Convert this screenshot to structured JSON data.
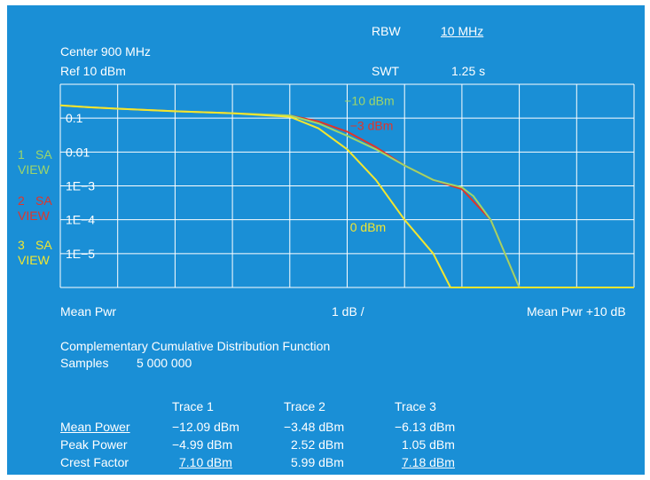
{
  "header": {
    "center": "Center 900 MHz",
    "ref": "Ref 10 dBm",
    "rbw_label": "RBW",
    "rbw_value": "10 MHz",
    "swt_label": "SWT",
    "swt_value": "1.25 s"
  },
  "side_labels": [
    {
      "num": "1",
      "tag": "SA",
      "view": "VIEW",
      "color": "#9ed66a"
    },
    {
      "num": "2",
      "tag": "SA",
      "view": "VIEW",
      "color": "#e0342a"
    },
    {
      "num": "3",
      "tag": "SA",
      "view": "VIEW",
      "color": "#f2e630"
    }
  ],
  "footer": {
    "x_left": "Mean Pwr",
    "x_mid": "1 dB /",
    "x_right": "Mean Pwr +10 dB",
    "func_title": "Complementary Cumulative Distribution Function",
    "samples_label": "Samples",
    "samples_value": "5 000 000"
  },
  "table": {
    "columns": [
      "Trace 1",
      "Trace 2",
      "Trace 3"
    ],
    "rows": [
      {
        "label": "Mean Power",
        "values": [
          "−12.09 dBm",
          "−3.48 dBm",
          "−6.13 dBm"
        ]
      },
      {
        "label": "Peak Power",
        "values": [
          "−4.99  dBm",
          "2.52 dBm",
          "1.05 dBm"
        ]
      },
      {
        "label": "Crest Factor",
        "values": [
          "7.10  dBm",
          "5.99 dBm",
          "7.18 dBm"
        ]
      }
    ]
  },
  "chart_data": {
    "type": "line",
    "title": "",
    "xlabel": "",
    "ylabel": "",
    "x_scale": "linear",
    "y_scale": "log",
    "xlim": [
      0,
      10
    ],
    "ylim": [
      1e-06,
      1
    ],
    "ytick_labels": [
      "0.1",
      "0.01",
      "1E−3",
      "1E−4",
      "1E−5"
    ],
    "ytick_values": [
      0.1,
      0.01,
      0.001,
      0.0001,
      1e-05
    ],
    "grid": true,
    "colors": {
      "trace1": "#9ed66a",
      "trace2": "#e0342a",
      "trace3": "#f2e630",
      "background": "#1a8fd6",
      "grid": "#ffffff"
    },
    "series": [
      {
        "name": "−10 dBm",
        "color": "#9ed66a",
        "x": [
          0,
          0.5,
          1,
          2,
          3,
          4,
          4.5,
          5,
          5.5,
          6,
          6.5,
          7,
          7.2,
          7.5,
          8,
          10
        ],
        "y": [
          0.24,
          0.21,
          0.19,
          0.16,
          0.14,
          0.12,
          0.07,
          0.03,
          0.012,
          0.004,
          0.0015,
          0.0009,
          0.0005,
          0.0001,
          1e-06,
          1e-06
        ]
      },
      {
        "name": "−3 dBm",
        "color": "#e0342a",
        "x": [
          0,
          0.5,
          1,
          2,
          3,
          4,
          4.5,
          5,
          5.5,
          6,
          6.5,
          7,
          7.5,
          8,
          10
        ],
        "y": [
          0.24,
          0.21,
          0.19,
          0.16,
          0.14,
          0.12,
          0.08,
          0.04,
          0.014,
          0.004,
          0.0015,
          0.0008,
          0.0001,
          1e-06,
          1e-06
        ]
      },
      {
        "name": "0 dBm",
        "color": "#f2e630",
        "x": [
          0,
          0.5,
          1,
          2,
          3,
          4,
          4.5,
          5,
          5.5,
          6,
          6.5,
          6.8,
          7,
          10
        ],
        "y": [
          0.24,
          0.21,
          0.19,
          0.16,
          0.14,
          0.11,
          0.05,
          0.012,
          0.0015,
          0.0001,
          1e-05,
          1e-06,
          1e-06,
          1e-06
        ]
      }
    ]
  }
}
